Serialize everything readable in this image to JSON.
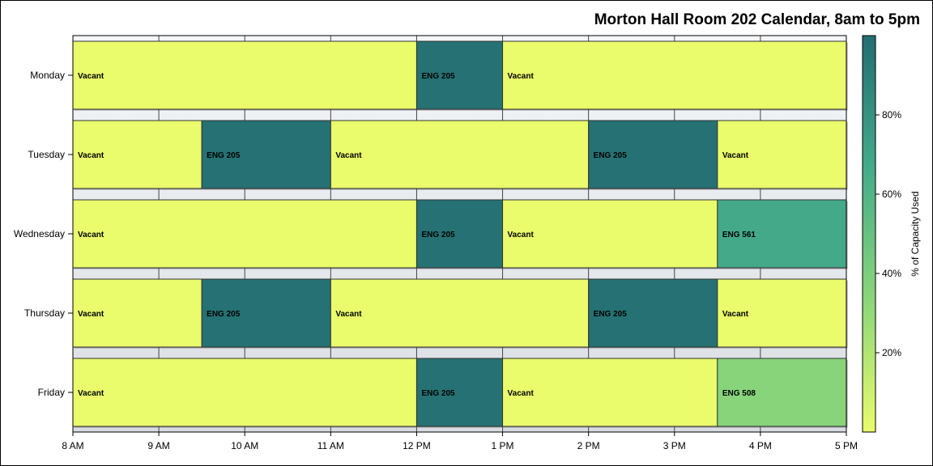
{
  "chart_data": {
    "type": "gantt",
    "title": "Morton Hall Room 202 Calendar, 8am to 5pm",
    "x_ticks": [
      "8 AM",
      "9 AM",
      "10 AM",
      "11 AM",
      "12 PM",
      "1 PM",
      "2 PM",
      "3 PM",
      "4 PM",
      "5 PM"
    ],
    "x_range_hours": [
      8,
      17
    ],
    "days": [
      {
        "name": "Monday",
        "events": [
          {
            "label": "Vacant",
            "start": 8,
            "end": 12,
            "capacity": 0
          },
          {
            "label": "ENG 205",
            "start": 12,
            "end": 13,
            "capacity": 98
          },
          {
            "label": "Vacant",
            "start": 13,
            "end": 17,
            "capacity": 0
          }
        ]
      },
      {
        "name": "Tuesday",
        "events": [
          {
            "label": "Vacant",
            "start": 8,
            "end": 9.5,
            "capacity": 0
          },
          {
            "label": "ENG 205",
            "start": 9.5,
            "end": 11,
            "capacity": 98
          },
          {
            "label": "Vacant",
            "start": 11,
            "end": 14,
            "capacity": 0
          },
          {
            "label": "ENG 205",
            "start": 14,
            "end": 15.5,
            "capacity": 98
          },
          {
            "label": "Vacant",
            "start": 15.5,
            "end": 17,
            "capacity": 0
          }
        ]
      },
      {
        "name": "Wednesday",
        "events": [
          {
            "label": "Vacant",
            "start": 8,
            "end": 12,
            "capacity": 0
          },
          {
            "label": "ENG 205",
            "start": 12,
            "end": 13,
            "capacity": 98
          },
          {
            "label": "Vacant",
            "start": 13,
            "end": 15.5,
            "capacity": 0
          },
          {
            "label": "ENG 561",
            "start": 15.5,
            "end": 17,
            "capacity": 68
          }
        ]
      },
      {
        "name": "Thursday",
        "events": [
          {
            "label": "Vacant",
            "start": 8,
            "end": 9.5,
            "capacity": 0
          },
          {
            "label": "ENG 205",
            "start": 9.5,
            "end": 11,
            "capacity": 98
          },
          {
            "label": "Vacant",
            "start": 11,
            "end": 14,
            "capacity": 0
          },
          {
            "label": "ENG 205",
            "start": 14,
            "end": 15.5,
            "capacity": 98
          },
          {
            "label": "Vacant",
            "start": 15.5,
            "end": 17,
            "capacity": 0
          }
        ]
      },
      {
        "name": "Friday",
        "events": [
          {
            "label": "Vacant",
            "start": 8,
            "end": 12,
            "capacity": 0
          },
          {
            "label": "ENG 205",
            "start": 12,
            "end": 13,
            "capacity": 98
          },
          {
            "label": "Vacant",
            "start": 13,
            "end": 15.5,
            "capacity": 0
          },
          {
            "label": "ENG 508",
            "start": 15.5,
            "end": 17,
            "capacity": 35
          }
        ]
      }
    ],
    "colorbar": {
      "title": "% of Capacity Used",
      "range": [
        0,
        100
      ],
      "ticks": [
        20,
        40,
        60,
        80
      ],
      "tick_labels": [
        "20%",
        "40%",
        "60%",
        "80%"
      ],
      "colors": [
        "#eafb6c",
        "#8bd67a",
        "#44ab8a",
        "#236d72"
      ]
    },
    "grid": true
  }
}
